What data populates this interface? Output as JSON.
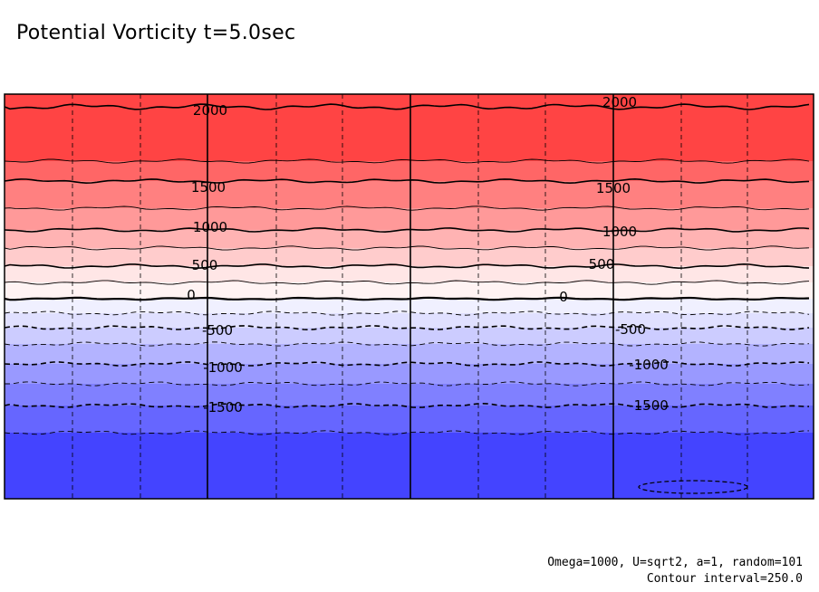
{
  "title": "Potential Vorticity t=5.0sec",
  "footer": {
    "params": "Omega=1000, U=sqrt2, a=1, random=101",
    "interval": "Contour interval=250.0"
  },
  "chart_data": {
    "type": "heatmap",
    "title": "Potential Vorticity t=5.0sec",
    "xlabel": "",
    "ylabel": "",
    "grid": true,
    "contour_interval": 250,
    "bands": [
      {
        "top_value": 2250,
        "bottom_value": 1750,
        "color": "#ff4444"
      },
      {
        "top_value": 1750,
        "bottom_value": 1500,
        "color": "#ff6666"
      },
      {
        "top_value": 1500,
        "bottom_value": 1250,
        "color": "#ff8080"
      },
      {
        "top_value": 1250,
        "bottom_value": 1000,
        "color": "#ff9999"
      },
      {
        "top_value": 1000,
        "bottom_value": 750,
        "color": "#ffb3b3"
      },
      {
        "top_value": 750,
        "bottom_value": 500,
        "color": "#ffcccc"
      },
      {
        "top_value": 500,
        "bottom_value": 250,
        "color": "#ffe6e6"
      },
      {
        "top_value": 250,
        "bottom_value": 0,
        "color": "#fff3f3"
      },
      {
        "top_value": 0,
        "bottom_value": -250,
        "color": "#f0f0ff"
      },
      {
        "top_value": -250,
        "bottom_value": -500,
        "color": "#e0e0ff"
      },
      {
        "top_value": -500,
        "bottom_value": -750,
        "color": "#ccccff"
      },
      {
        "top_value": -750,
        "bottom_value": -1000,
        "color": "#b3b3ff"
      },
      {
        "top_value": -1000,
        "bottom_value": -1250,
        "color": "#9999ff"
      },
      {
        "top_value": -1250,
        "bottom_value": -1500,
        "color": "#8080ff"
      },
      {
        "top_value": -1500,
        "bottom_value": -1750,
        "color": "#6666ff"
      },
      {
        "top_value": -1750,
        "bottom_value": -2250,
        "color": "#4444ff"
      }
    ],
    "contour_labels": [
      {
        "text": "2000",
        "value": 2000
      },
      {
        "text": "2000",
        "value": 2000
      },
      {
        "text": "1500",
        "value": 1500
      },
      {
        "text": "1500",
        "value": 1500
      },
      {
        "text": "1000",
        "value": 1000
      },
      {
        "text": "1000",
        "value": 1000
      },
      {
        "text": "500",
        "value": 500
      },
      {
        "text": "500",
        "value": 500
      },
      {
        "text": "0",
        "value": 0
      },
      {
        "text": "0",
        "value": 0
      },
      {
        "text": "-500",
        "value": -500
      },
      {
        "text": "-500",
        "value": -500
      },
      {
        "text": "-1000",
        "value": -1000
      },
      {
        "text": "-1000",
        "value": -1000
      },
      {
        "text": "-1500",
        "value": -1500
      },
      {
        "text": "-1500",
        "value": -1500
      }
    ]
  }
}
